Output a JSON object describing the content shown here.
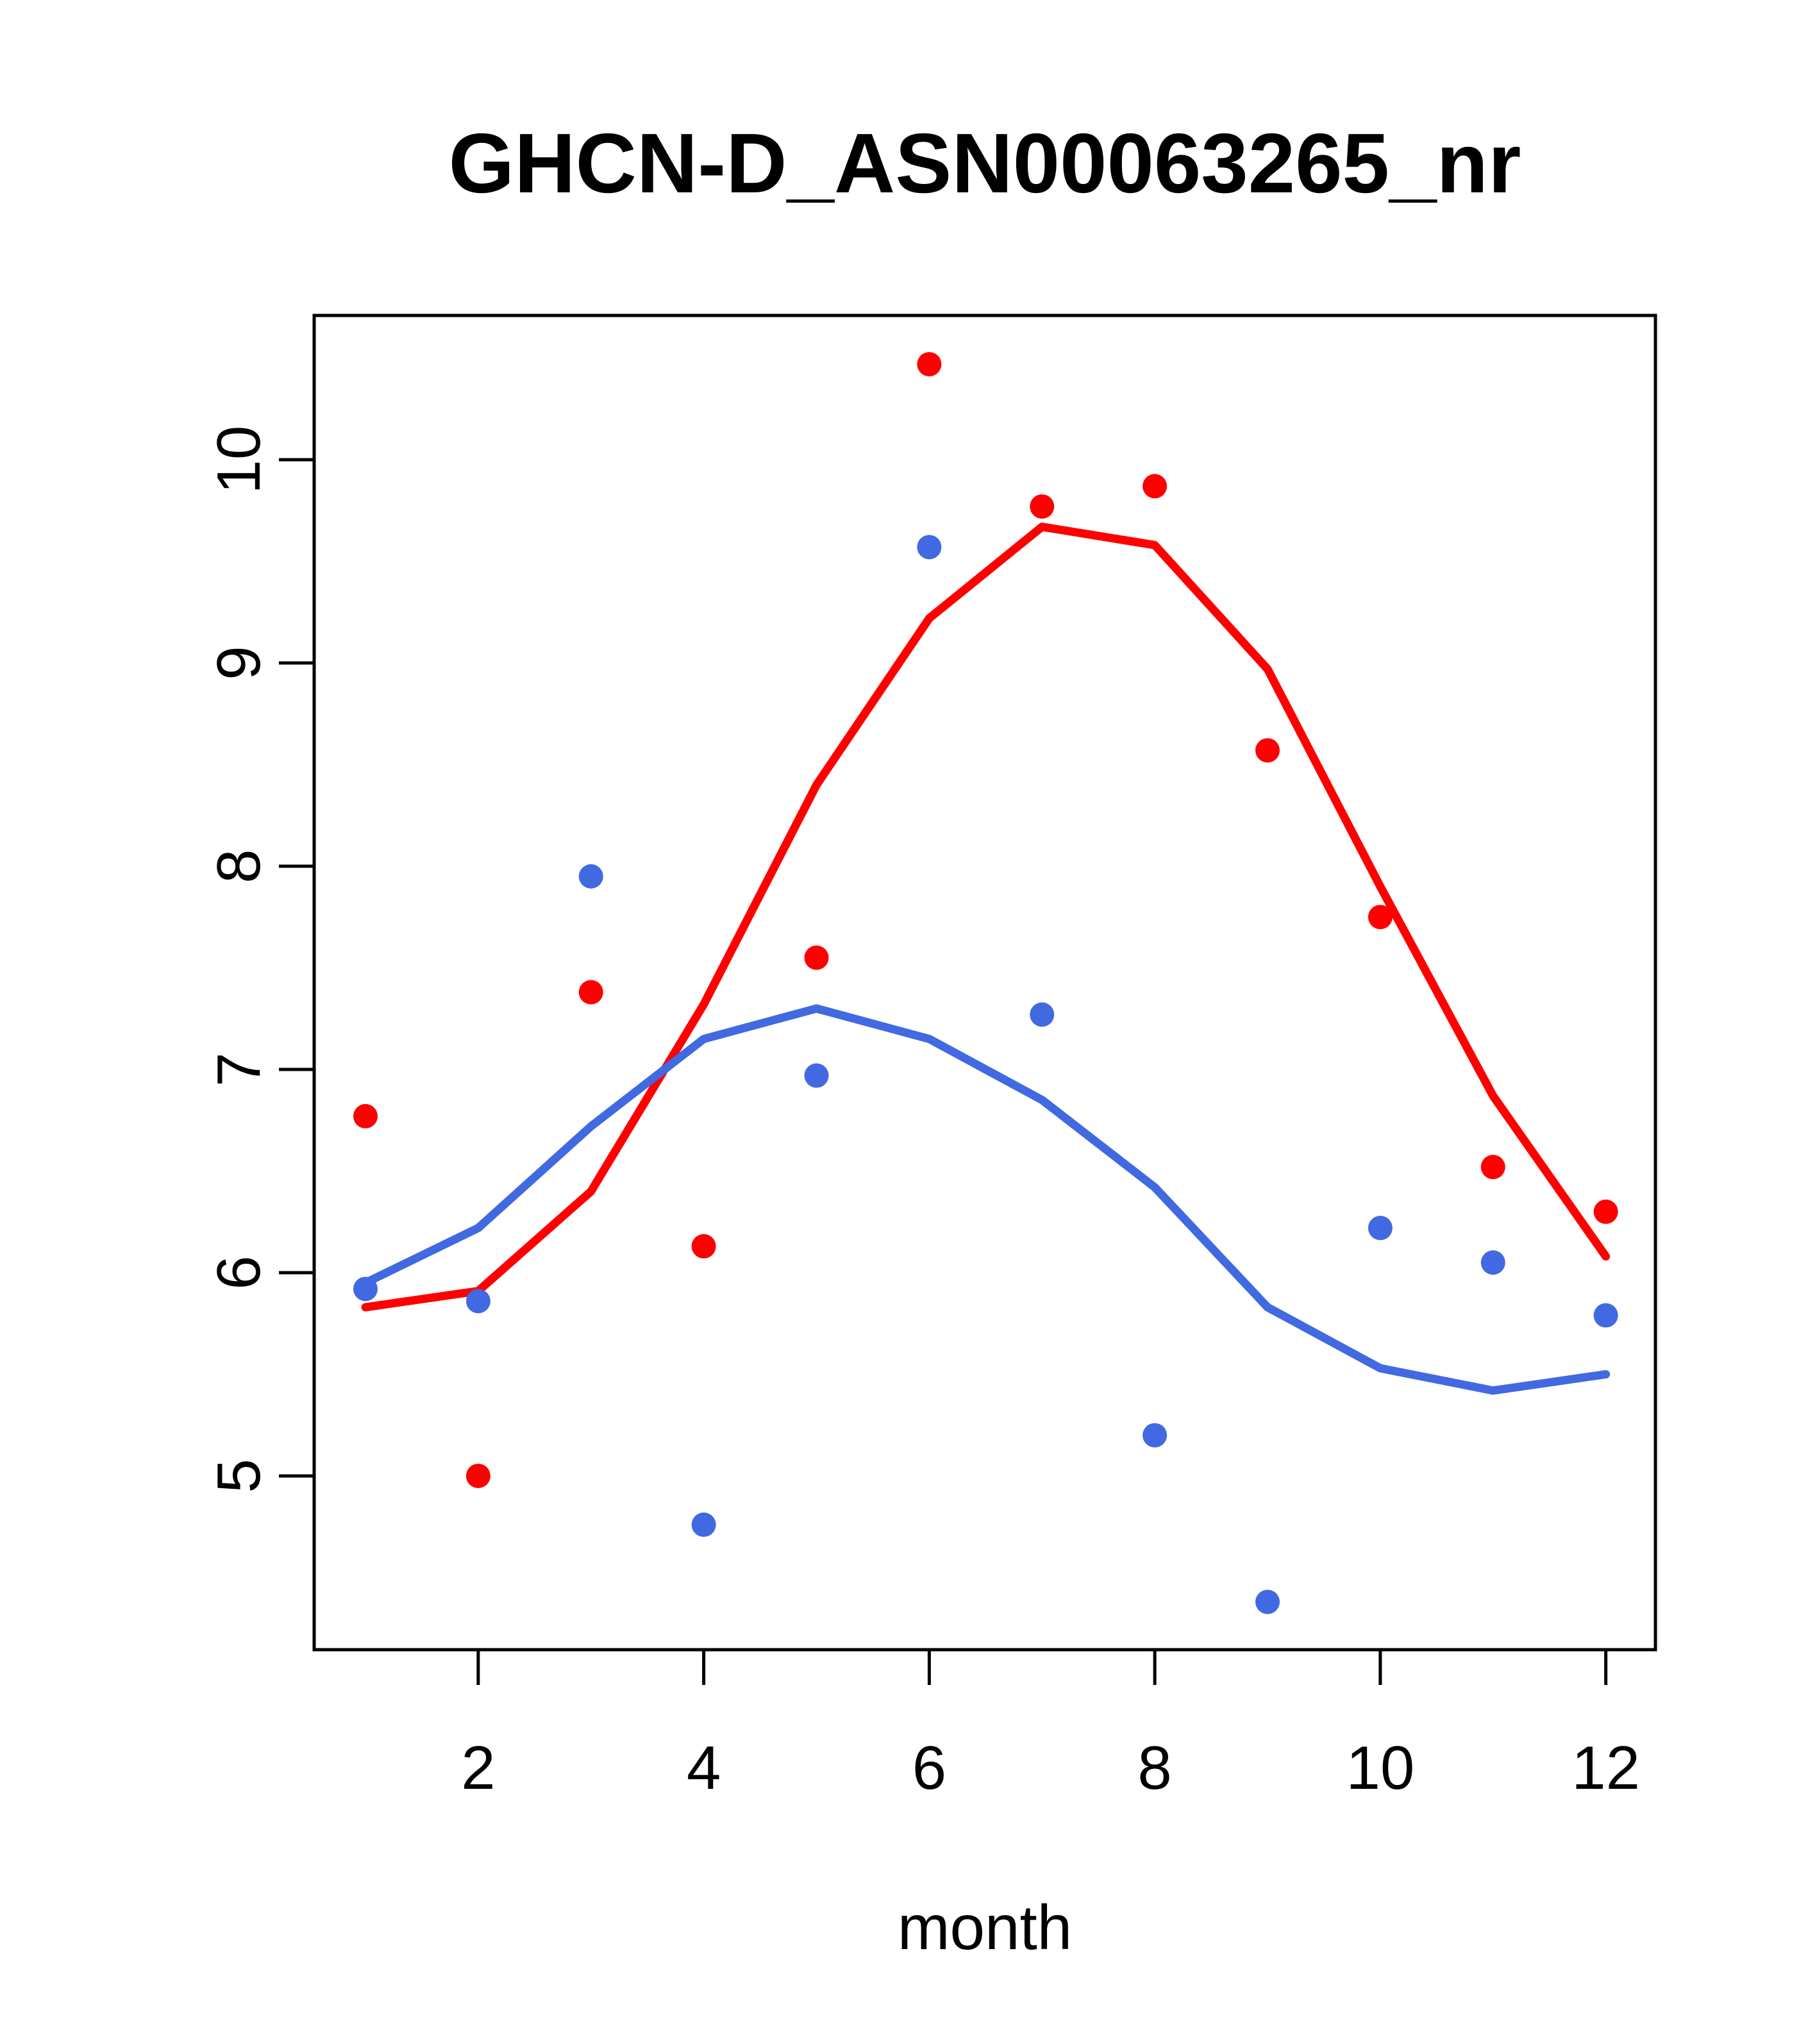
{
  "title": "GHCN-D_ASN00063265_nr",
  "chart_data": {
    "type": "scatter",
    "title": "GHCN-D_ASN00063265_nr",
    "xlabel": "month",
    "ylabel": "",
    "x": [
      1,
      2,
      3,
      4,
      5,
      6,
      7,
      8,
      9,
      10,
      11,
      12
    ],
    "series": [
      {
        "name": "red-points",
        "type": "scatter",
        "color": "#ff0000",
        "values": [
          6.77,
          5.0,
          7.38,
          6.13,
          7.55,
          10.47,
          9.77,
          9.87,
          8.57,
          7.75,
          6.52,
          6.3
        ]
      },
      {
        "name": "blue-points",
        "type": "scatter",
        "color": "#4169e1",
        "values": [
          5.92,
          5.86,
          7.95,
          4.76,
          6.97,
          9.57,
          7.27,
          5.2,
          4.38,
          6.22,
          6.05,
          5.79
        ]
      },
      {
        "name": "red-smooth-line",
        "type": "line",
        "color": "#ff0000",
        "values": [
          5.83,
          5.91,
          6.4,
          7.32,
          8.4,
          9.22,
          9.67,
          9.58,
          8.97,
          7.9,
          6.87,
          6.08
        ]
      },
      {
        "name": "blue-smooth-line",
        "type": "line",
        "color": "#4169e1",
        "values": [
          5.95,
          6.22,
          6.72,
          7.15,
          7.3,
          7.15,
          6.85,
          6.42,
          5.83,
          5.53,
          5.42,
          5.5
        ]
      }
    ],
    "x_ticks": [
      2,
      4,
      6,
      8,
      10,
      12
    ],
    "y_ticks": [
      5,
      6,
      7,
      8,
      9,
      10
    ],
    "xlim": [
      0.545,
      12.44
    ],
    "ylim": [
      4.145,
      10.71
    ],
    "grid": false,
    "legend": null,
    "frame_color": "#000000",
    "background_color": "#ffffff"
  }
}
